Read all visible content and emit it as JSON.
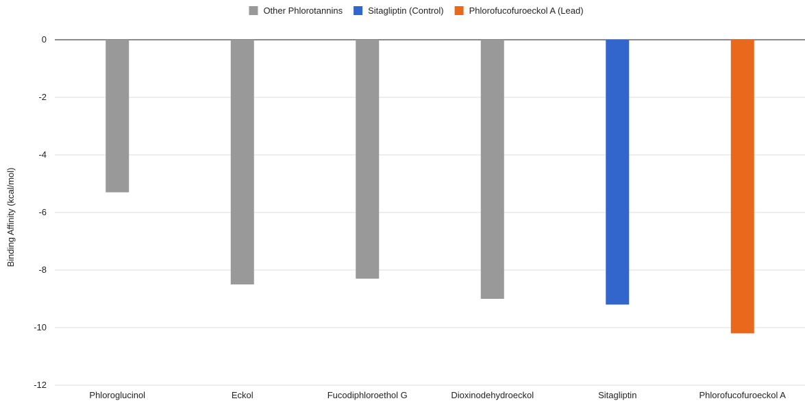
{
  "chart_data": {
    "type": "bar",
    "title": "",
    "xlabel": "",
    "ylabel": "Binding Affinity (kcal/mol)",
    "ylim": [
      -12,
      0
    ],
    "yticks": [
      0,
      -2,
      -4,
      -6,
      -8,
      -10,
      -12
    ],
    "grid": true,
    "legend_position": "top",
    "categories": [
      "Phloroglucinol",
      "Eckol",
      "Fucodiphloroethol G",
      "Dioxinodehydroeckol",
      "Sitagliptin",
      "Phlorofucofuroeckol A"
    ],
    "values": [
      -5.3,
      -8.5,
      -8.3,
      -9.0,
      -9.2,
      -10.2
    ],
    "bar_groups": [
      "Other Phlorotannins",
      "Other Phlorotannins",
      "Other Phlorotannins",
      "Other Phlorotannins",
      "Sitagliptin (Control)",
      "Phlorofucofuroeckol A (Lead)"
    ],
    "legend": [
      {
        "name": "Other Phlorotannins",
        "color": "#999999"
      },
      {
        "name": "Sitagliptin (Control)",
        "color": "#3366cc"
      },
      {
        "name": "Phlorofucofuroeckol A (Lead)",
        "color": "#e8691c"
      }
    ]
  }
}
